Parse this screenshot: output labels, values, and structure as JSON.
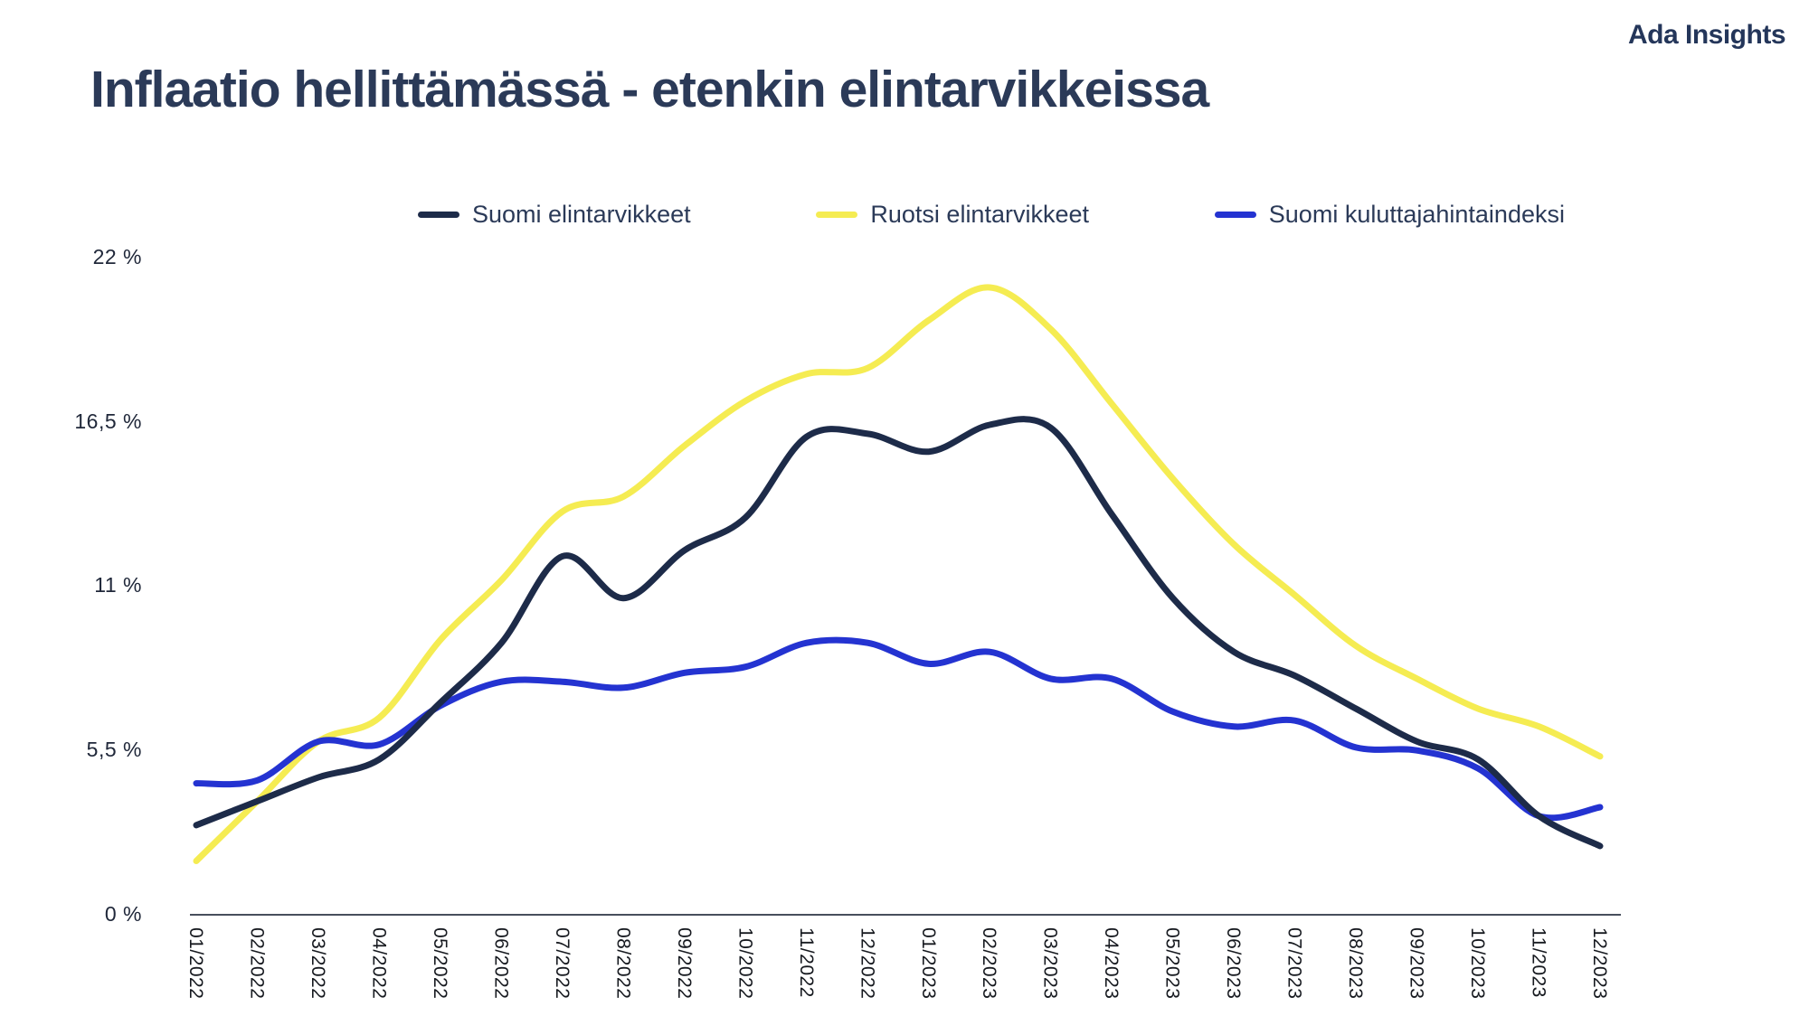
{
  "brand": "Ada Insights",
  "title": "Inflaatio hellittämässä - etenkin elintarvikkeissa",
  "colors": {
    "title_text": "#2b3a58",
    "axis_line": "#474e5c",
    "y_tick_text": "#20283a",
    "x_tick_text": "#16191f"
  },
  "chart_data": {
    "type": "line",
    "title": "Inflaatio hellittämässä - etenkin elintarvikkeissa",
    "x": [
      "01/2022",
      "02/2022",
      "03/2022",
      "04/2022",
      "05/2022",
      "06/2022",
      "07/2022",
      "08/2022",
      "09/2022",
      "10/2022",
      "11/2022",
      "12/2022",
      "01/2023",
      "02/2023",
      "03/2023",
      "04/2023",
      "05/2023",
      "06/2023",
      "07/2023",
      "08/2023",
      "09/2023",
      "10/2023",
      "11/2023",
      "12/2023"
    ],
    "series": [
      {
        "name": "Suomi elintarvikkeet",
        "color": "#1d2b49",
        "values": [
          3.0,
          3.8,
          4.6,
          5.2,
          7.1,
          9.1,
          12.0,
          10.6,
          12.2,
          13.3,
          16.0,
          16.1,
          15.5,
          16.4,
          16.3,
          13.4,
          10.6,
          8.8,
          8.0,
          6.9,
          5.8,
          5.2,
          3.3,
          2.3
        ]
      },
      {
        "name": "Ruotsi elintarvikkeet",
        "color": "#f5ec52",
        "values": [
          1.8,
          3.8,
          5.8,
          6.6,
          9.2,
          11.2,
          13.5,
          14.0,
          15.7,
          17.2,
          18.1,
          18.3,
          19.9,
          21.0,
          19.6,
          17.1,
          14.6,
          12.4,
          10.7,
          9.0,
          7.9,
          6.9,
          6.3,
          5.3
        ]
      },
      {
        "name": "Suomi kuluttajahintaindeksi",
        "color": "#2433d1",
        "values": [
          4.4,
          4.5,
          5.8,
          5.7,
          7.0,
          7.8,
          7.8,
          7.6,
          8.1,
          8.3,
          9.1,
          9.1,
          8.4,
          8.8,
          7.9,
          7.9,
          6.8,
          6.3,
          6.5,
          5.6,
          5.5,
          4.9,
          3.3,
          3.6
        ]
      }
    ],
    "y_ticks": [
      {
        "label": "0 %",
        "value": 0
      },
      {
        "label": "5,5 %",
        "value": 5.5
      },
      {
        "label": "11 %",
        "value": 11
      },
      {
        "label": "16,5 %",
        "value": 16.5
      },
      {
        "label": "22 %",
        "value": 22
      }
    ],
    "ylim": [
      0,
      22
    ],
    "unit": "%",
    "grid": false,
    "legend_position": "top",
    "draw_order": [
      1,
      2,
      0
    ]
  }
}
